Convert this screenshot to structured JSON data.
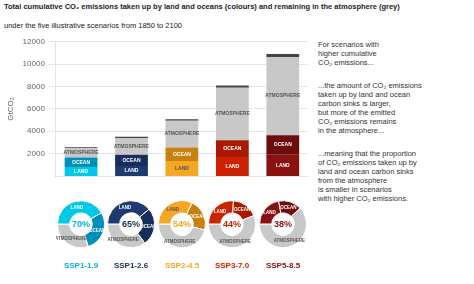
{
  "chart_data": [
    {
      "type": "bar",
      "title": "Total cumulative CO₂ emissions taken up by land and oceans (colours) and remaining in the atmosphere (grey)",
      "subtitle": "under the five illustrative scenarios from 1850 to 2100",
      "annotations": [
        "For scenarios with\nhigher cumulative\nCO₂ emissions...",
        "...the amount of CO₂ emissions\ntaken up by land and ocean\ncarbon sinks is larger,\nbut more of the emitted\nCO₂ emissions remains\nin the atmosphere...",
        "...meaning that the proportion\nof CO₂ emissions taken up by\nland and ocean carbon sinks\nfrom the atmosphere\nis smaller in scenarios\nwith higher CO₂ emissions."
      ],
      "categories": [
        null,
        null,
        null,
        null,
        null
      ],
      "series": [
        {
          "name": "LAND",
          "colors": [
            "#00c8e8",
            "#1e3a70",
            "#f5a623",
            "#cc2200",
            "#8b1010"
          ],
          "values": [
            800,
            900,
            1350,
            1700,
            1900
          ]
        },
        {
          "name": "OCEAN",
          "colors": [
            "#008fb8",
            "#162d5e",
            "#c88010",
            "#aa1800",
            "#6e0c0c"
          ],
          "values": [
            850,
            1000,
            1200,
            1500,
            1750
          ]
        },
        {
          "name": "ATMOSPHERE",
          "color": "#c8c8c8",
          "values": [
            850,
            1500,
            2400,
            4700,
            7000
          ]
        },
        {
          "color": "#444444",
          "values": [
            80,
            100,
            130,
            200,
            250
          ]
        }
      ],
      "stacked": true,
      "ylabel": "GtCO₂",
      "ylim": [
        0,
        12000
      ],
      "yticks": [
        2000,
        4000,
        6000,
        8000,
        10000,
        12000
      ],
      "grid": true,
      "tick_labels": "y"
    },
    {
      "type": "donut",
      "title": "SSP1-1.9",
      "annotations": [
        "70%"
      ],
      "color": "#00b8d4",
      "categories": [
        "LAND",
        "OCEAN",
        "ATMOSPHERE"
      ],
      "values": [
        0.42,
        0.28,
        0.3
      ],
      "colors": [
        "#00c8e8",
        "#008fb8",
        "#c8c8c8"
      ]
    },
    {
      "type": "donut",
      "title": "SSP1-2.6",
      "annotations": [
        "65%"
      ],
      "color": "#1a2e5a",
      "categories": [
        "LAND",
        "OCEAN",
        "ATMOSPHERE"
      ],
      "values": [
        0.39,
        0.26,
        0.35
      ],
      "colors": [
        "#1e3a70",
        "#162d5e",
        "#c8c8c8"
      ]
    },
    {
      "type": "donut",
      "title": "SSP2-4.5",
      "annotations": [
        "54%"
      ],
      "color": "#f5a623",
      "categories": [
        "LAND",
        "OCEAN",
        "ATMOSPHERE"
      ],
      "values": [
        0.32,
        0.22,
        0.46
      ],
      "colors": [
        "#f5a623",
        "#c88010",
        "#c8c8c8"
      ]
    },
    {
      "type": "donut",
      "title": "SSP3-7.0",
      "annotations": [
        "44%"
      ],
      "color": "#cc2200",
      "categories": [
        "LAND",
        "OCEAN",
        "ATMOSPHERE"
      ],
      "values": [
        0.26,
        0.18,
        0.56
      ],
      "colors": [
        "#cc2200",
        "#aa1800",
        "#c8c8c8"
      ]
    },
    {
      "type": "donut",
      "title": "SSP5-8.5",
      "annotations": [
        "38%"
      ],
      "color": "#8b1010",
      "categories": [
        "LAND",
        "OCEAN",
        "ATMOSPHERE"
      ],
      "values": [
        0.22,
        0.16,
        0.62
      ],
      "colors": [
        "#8b1010",
        "#6e0c0c",
        "#c8c8c8"
      ]
    }
  ]
}
